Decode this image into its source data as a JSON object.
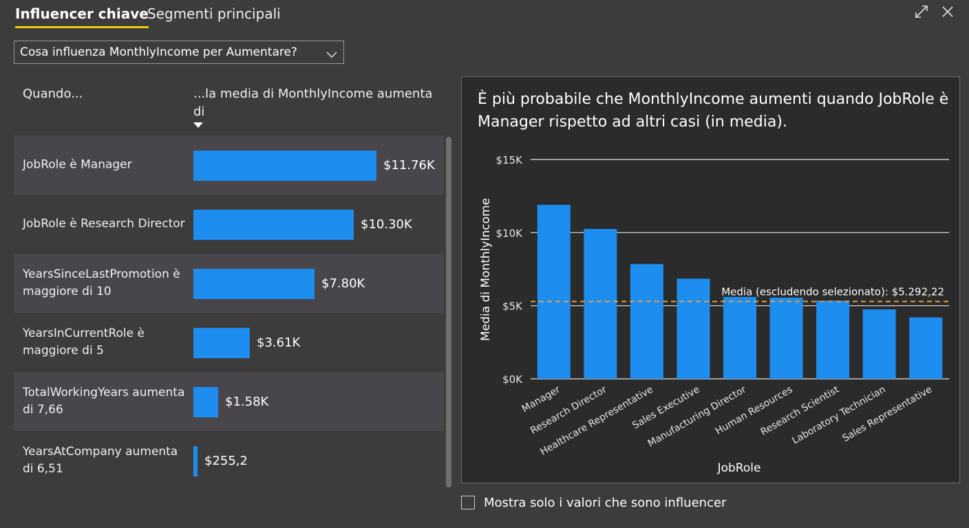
{
  "tabs": [
    {
      "label": "Influencer chiave",
      "active": true
    },
    {
      "label": "Segmenti principali",
      "active": false
    }
  ],
  "window_controls": {
    "expand_icon": "expand-icon",
    "close_icon": "close-icon"
  },
  "dropdown": {
    "value": "Cosa influenza MonthlyIncome per Aumentare?",
    "icon": "chevron-down-icon"
  },
  "columns": {
    "when": "Quando...",
    "avg_increase": "...la media di MonthlyIncome aumenta di"
  },
  "influencers": [
    {
      "label": "JobRole è Manager",
      "value": 11760,
      "value_label": "$11.76K",
      "selected": true
    },
    {
      "label": "JobRole è Research Director",
      "value": 10300,
      "value_label": "$10.30K",
      "selected": false
    },
    {
      "label": "YearsSinceLastPromotion è maggiore di 10",
      "value": 7800,
      "value_label": "$7.80K",
      "selected": false
    },
    {
      "label": "YearsInCurrentRole è maggiore di 5",
      "value": 3610,
      "value_label": "$3.61K",
      "selected": false
    },
    {
      "label": "TotalWorkingYears aumenta di 7,66",
      "value": 1580,
      "value_label": "$1.58K",
      "selected": false
    },
    {
      "label": "YearsAtCompany aumenta di 6,51",
      "value": 255.2,
      "value_label": "$255,2",
      "selected": false
    }
  ],
  "detail": {
    "title": "È più probabile che MonthlyIncome aumenti quando JobRole è Manager rispetto ad altri casi (in media)."
  },
  "chart_data": {
    "type": "bar",
    "categories": [
      "Manager",
      "Research Director",
      "Healthcare Representative",
      "Sales Executive",
      "Manufacturing Director",
      "Human Resources",
      "Research Scientist",
      "Laboratory Technician",
      "Sales Representative"
    ],
    "values": [
      11900,
      10250,
      7850,
      6850,
      5600,
      5550,
      5350,
      4750,
      4200
    ],
    "xlabel": "JobRole",
    "ylabel": "Media di MonthlyIncome",
    "ylim": [
      0,
      15000
    ],
    "yticks": [
      0,
      5000,
      10000,
      15000
    ],
    "ytick_labels": [
      "$0K",
      "$5K",
      "$10K",
      "$15K"
    ],
    "grid": true,
    "reference_line": {
      "value": 5292.22,
      "label": "Media (escludendo selezionato): $5.292,22",
      "color": "#e8a040",
      "style": "dashed"
    },
    "bar_color": "#1e8df0"
  },
  "checkbox": {
    "label": "Mostra solo i valori che sono influencer",
    "checked": false
  },
  "colors": {
    "background": "#3c3c3c",
    "panel": "#2b2b2b",
    "bar": "#1e8df0",
    "tab_underline": "#f2c811",
    "selected_row": "#48464b"
  }
}
